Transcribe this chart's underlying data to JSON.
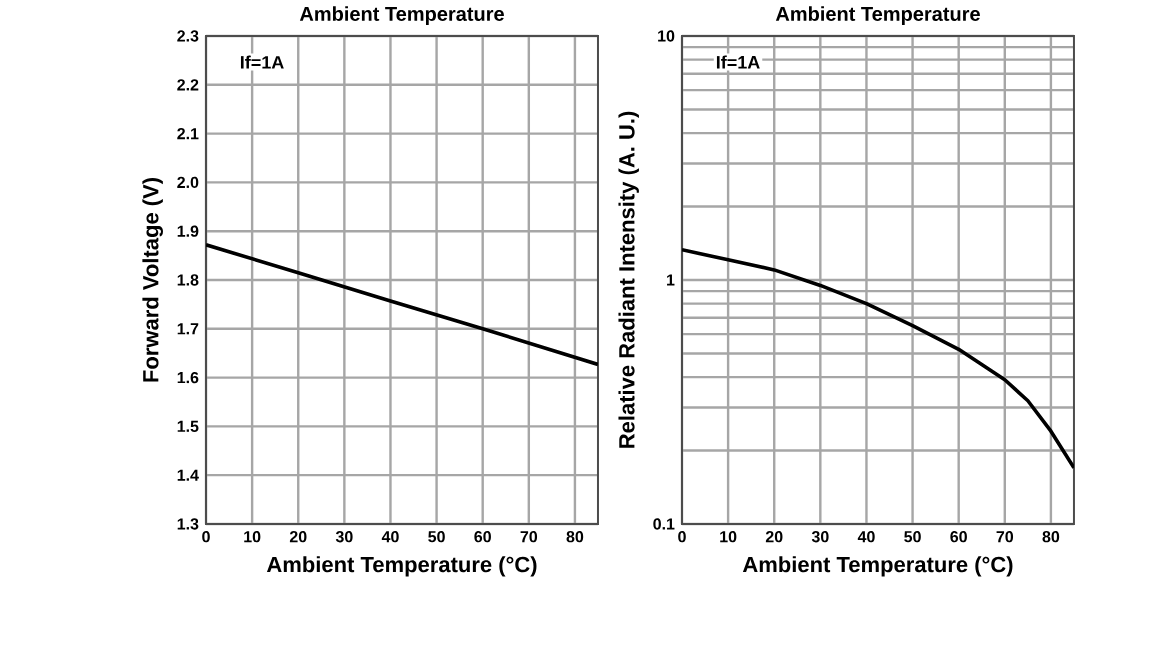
{
  "chart_data": [
    {
      "type": "line",
      "title": "Ambient Temperature",
      "xlabel": "Ambient Temperature (°C)",
      "ylabel": "Forward Voltage (V)",
      "annotations": [
        "If=1A"
      ],
      "x": [
        0,
        20,
        40,
        60,
        85
      ],
      "series": [
        {
          "color": "#000000",
          "values": [
            1.872,
            1.815,
            1.757,
            1.7,
            1.627
          ]
        }
      ],
      "xlim": [
        0,
        85
      ],
      "xticks": [
        0,
        10,
        20,
        30,
        40,
        50,
        60,
        70,
        80
      ],
      "ylim": [
        1.3,
        2.3
      ],
      "yticks": [
        1.3,
        1.4,
        1.5,
        1.6,
        1.7,
        1.8,
        1.9,
        {
          "value": 2,
          "label": "2.0"
        },
        2.1,
        2.2,
        2.3
      ],
      "grid": true,
      "marker": "none",
      "line_style": "solid"
    },
    {
      "type": "line",
      "title": "Ambient Temperature",
      "xlabel": "Ambient Temperature (°C)",
      "ylabel": "Relative Radiant Intensity (A. U.)",
      "annotations": [
        "If=1A"
      ],
      "x": [
        0,
        10,
        20,
        30,
        40,
        50,
        60,
        70,
        75,
        80,
        85
      ],
      "series": [
        {
          "color": "#000000",
          "values": [
            1.33,
            1.21,
            1.1,
            0.95,
            0.8,
            0.65,
            0.52,
            0.39,
            0.32,
            0.24,
            0.17
          ]
        }
      ],
      "xlim": [
        0,
        85
      ],
      "xticks": [
        0,
        10,
        20,
        30,
        40,
        50,
        60,
        70,
        80
      ],
      "ylim": [
        0.1,
        10
      ],
      "log": "y",
      "yticks": [
        0.1,
        {
          "value": 0.2,
          "label": null
        },
        {
          "value": 0.3,
          "label": null
        },
        {
          "value": 0.4,
          "label": null
        },
        {
          "value": 0.5,
          "label": null
        },
        {
          "value": 0.6,
          "label": null
        },
        {
          "value": 0.7,
          "label": null
        },
        {
          "value": 0.8,
          "label": null
        },
        {
          "value": 0.9,
          "label": null
        },
        1,
        {
          "value": 2,
          "label": null
        },
        {
          "value": 3,
          "label": null
        },
        {
          "value": 4,
          "label": null
        },
        {
          "value": 5,
          "label": null
        },
        {
          "value": 6,
          "label": null
        },
        {
          "value": 7,
          "label": null
        },
        {
          "value": 8,
          "label": null
        },
        {
          "value": 9,
          "label": null
        },
        10
      ],
      "grid": true,
      "marker": "none",
      "line_style": "solid"
    }
  ]
}
